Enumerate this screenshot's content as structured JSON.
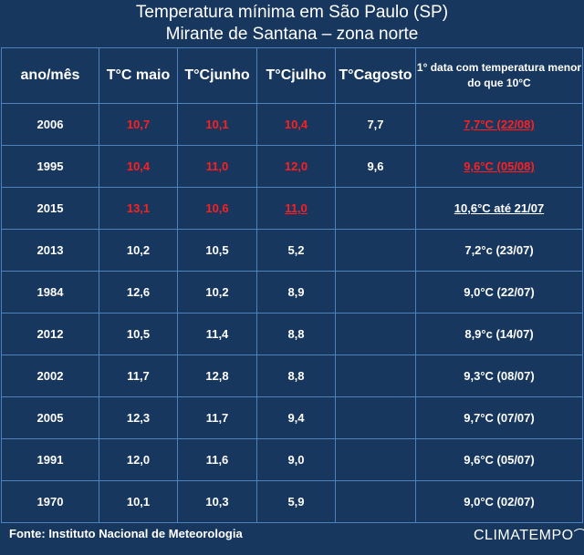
{
  "title": {
    "line1": "Temperatura mínima em São Paulo (SP)",
    "line2": "Mirante de Santana – zona norte"
  },
  "headers": [
    "ano/mês",
    "T°C maio",
    "T°Cjunho",
    "T°Cjulho",
    "T°Cagosto",
    "1° data com  temperatura menor do que 10°C"
  ],
  "rows": [
    {
      "year": "2006",
      "maio": "10,7",
      "junho": "10,1",
      "julho": "10,4",
      "agosto": "7,7",
      "first_date": "7,7°C (22/08)"
    },
    {
      "year": "1995",
      "maio": "10,4",
      "junho": "11,0",
      "julho": "12,0",
      "agosto": "9,6",
      "first_date": "9,6°C (05/08)"
    },
    {
      "year": "2015",
      "maio": "13,1",
      "junho": "10,6",
      "julho": "11,0",
      "agosto": "",
      "first_date": "10,6°C até 21/07"
    },
    {
      "year": "2013",
      "maio": "10,2",
      "junho": "10,5",
      "julho": "5,2",
      "agosto": "",
      "first_date": "7,2°c (23/07)"
    },
    {
      "year": "1984",
      "maio": "12,6",
      "junho": "10,2",
      "julho": "8,9",
      "agosto": "",
      "first_date": "9,0°C (22/07)"
    },
    {
      "year": "2012",
      "maio": "10,5",
      "junho": "11,4",
      "julho": "8,8",
      "agosto": "",
      "first_date": "8,9°c (14/07)"
    },
    {
      "year": "2002",
      "maio": "11,7",
      "junho": "12,8",
      "julho": "8,8",
      "agosto": "",
      "first_date": "9,3°C (08/07)"
    },
    {
      "year": "2005",
      "maio": "12,3",
      "junho": "11,7",
      "julho": "9,4",
      "agosto": "",
      "first_date": "9,7°C (07/07)"
    },
    {
      "year": "1991",
      "maio": "12,0",
      "junho": "11,6",
      "julho": "9,0",
      "agosto": "",
      "first_date": "9,6°C (05/07)"
    },
    {
      "year": "1970",
      "maio": "10,1",
      "junho": "10,3",
      "julho": "5,9",
      "agosto": "",
      "first_date": "9,0°C (02/07)"
    }
  ],
  "footer": {
    "source": "Fonte: Instituto Nacional de Meteorologia",
    "logo": "CLIMATEMPO"
  },
  "colors": {
    "background": "#17375e",
    "border": "#4f81bd",
    "highlight": "#ff1f1f",
    "text": "#ffffff"
  }
}
